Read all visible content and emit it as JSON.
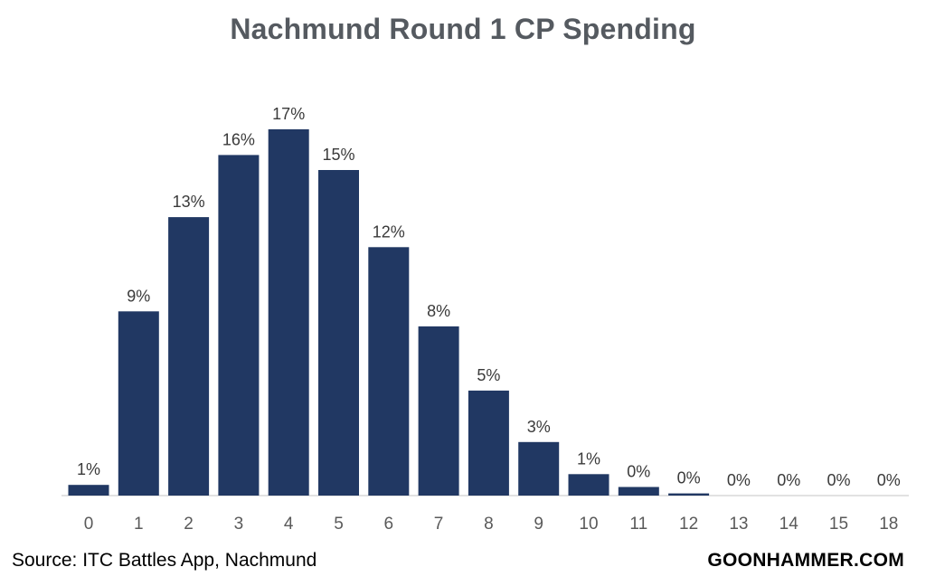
{
  "chart_data": {
    "type": "bar",
    "title": "Nachmund Round 1 CP Spending",
    "categories": [
      "0",
      "1",
      "2",
      "3",
      "4",
      "5",
      "6",
      "7",
      "8",
      "9",
      "10",
      "11",
      "12",
      "13",
      "14",
      "15",
      "18"
    ],
    "values": [
      1,
      9,
      13,
      16,
      17,
      15,
      12,
      8,
      5,
      3,
      1,
      0,
      0,
      0,
      0,
      0,
      0
    ],
    "bar_heights": [
      0.5,
      8.6,
      13.0,
      15.9,
      17.1,
      15.2,
      11.6,
      7.9,
      4.9,
      2.5,
      1.0,
      0.4,
      0.1,
      0,
      0,
      0,
      0
    ],
    "data_labels": [
      "1%",
      "9%",
      "13%",
      "16%",
      "17%",
      "15%",
      "12%",
      "8%",
      "5%",
      "3%",
      "1%",
      "0%",
      "0%",
      "0%",
      "0%",
      "0%",
      "0%"
    ],
    "xlabel": "",
    "ylabel": "",
    "ylim": [
      0,
      17.1
    ],
    "grid": false,
    "legend": "none",
    "bar_color": "#213863"
  },
  "footer": {
    "source": "Source: ITC Battles App, Nachmund",
    "brand": "GOONHAMMER.COM"
  }
}
